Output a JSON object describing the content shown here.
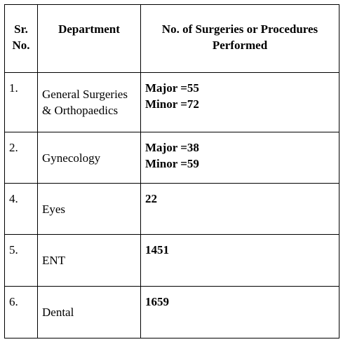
{
  "table": {
    "header": [
      "Sr. No.",
      "Department",
      "No. of Surgeries or Procedures Performed"
    ],
    "rows": [
      [
        "1.",
        "General Surgeries & Orthopaedics",
        [
          "Major =55",
          "Minor =72"
        ]
      ],
      [
        "2.",
        "Gynecology",
        [
          "Major =38",
          "Minor =59"
        ]
      ],
      [
        "4.",
        "Eyes",
        [
          "22"
        ]
      ],
      [
        "5.",
        "ENT",
        [
          "1451"
        ]
      ],
      [
        "6.",
        "Dental",
        [
          "1659"
        ]
      ]
    ]
  }
}
